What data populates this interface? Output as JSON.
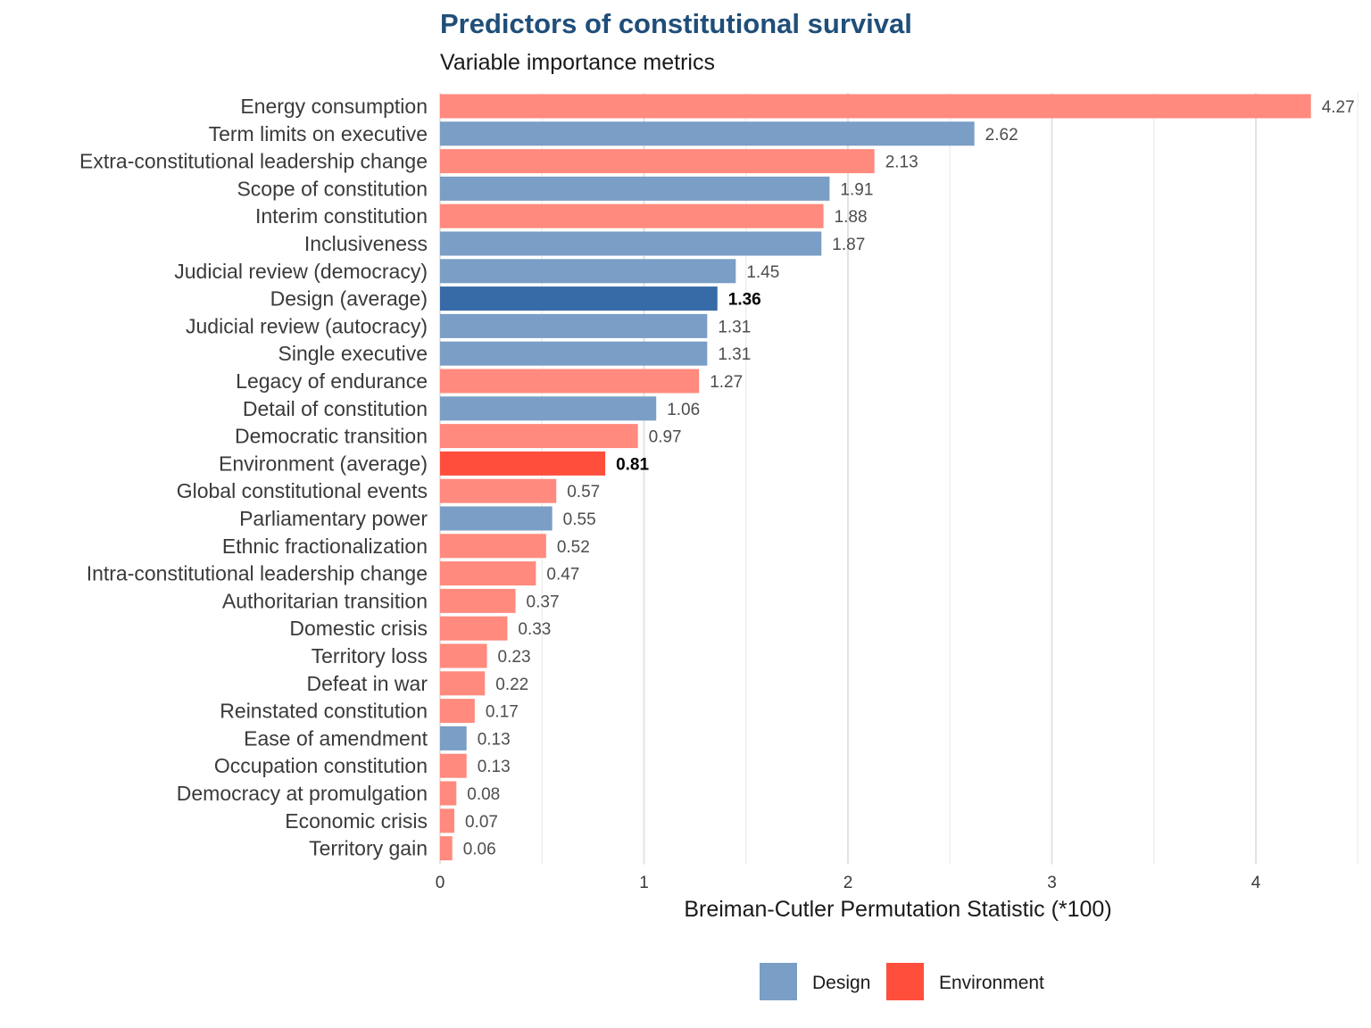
{
  "chart_data": {
    "type": "bar",
    "orientation": "horizontal",
    "title": "Predictors of constitutional survival",
    "subtitle": "Variable importance metrics",
    "xlabel": "Breiman-Cutler Permutation Statistic (*100)",
    "ylabel": "",
    "xlim": [
      0,
      4.5
    ],
    "xticks": [
      0,
      1,
      2,
      3,
      4
    ],
    "grid": true,
    "legend_position": "bottom",
    "colors": {
      "Design": "#7a9ec5",
      "Environment": "#ff8a7d",
      "Design_average": "#376ba7",
      "Environment_average": "#ff4f3c",
      "title": "#1f4e79"
    },
    "legend": [
      {
        "label": "Design",
        "color": "#7a9ec5"
      },
      {
        "label": "Environment",
        "color": "#ff4f3c"
      }
    ],
    "bars": [
      {
        "label": "Energy consumption",
        "value": 4.27,
        "value_label": "4.27",
        "group": "Environment",
        "average": false
      },
      {
        "label": "Term limits on executive",
        "value": 2.62,
        "value_label": "2.62",
        "group": "Design",
        "average": false
      },
      {
        "label": "Extra-constitutional leadership change",
        "value": 2.13,
        "value_label": "2.13",
        "group": "Environment",
        "average": false
      },
      {
        "label": "Scope of constitution",
        "value": 1.91,
        "value_label": "1.91",
        "group": "Design",
        "average": false
      },
      {
        "label": "Interim constitution",
        "value": 1.88,
        "value_label": "1.88",
        "group": "Environment",
        "average": false
      },
      {
        "label": "Inclusiveness",
        "value": 1.87,
        "value_label": "1.87",
        "group": "Design",
        "average": false
      },
      {
        "label": "Judicial review (democracy)",
        "value": 1.45,
        "value_label": "1.45",
        "group": "Design",
        "average": false
      },
      {
        "label": "Design (average)",
        "value": 1.36,
        "value_label": "1.36",
        "group": "Design",
        "average": true
      },
      {
        "label": "Judicial review (autocracy)",
        "value": 1.31,
        "value_label": "1.31",
        "group": "Design",
        "average": false
      },
      {
        "label": "Single executive",
        "value": 1.31,
        "value_label": "1.31",
        "group": "Design",
        "average": false
      },
      {
        "label": "Legacy of endurance",
        "value": 1.27,
        "value_label": "1.27",
        "group": "Environment",
        "average": false
      },
      {
        "label": "Detail of constitution",
        "value": 1.06,
        "value_label": "1.06",
        "group": "Design",
        "average": false
      },
      {
        "label": "Democratic transition",
        "value": 0.97,
        "value_label": "0.97",
        "group": "Environment",
        "average": false
      },
      {
        "label": "Environment (average)",
        "value": 0.81,
        "value_label": "0.81",
        "group": "Environment",
        "average": true
      },
      {
        "label": "Global constitutional events",
        "value": 0.57,
        "value_label": "0.57",
        "group": "Environment",
        "average": false
      },
      {
        "label": "Parliamentary power",
        "value": 0.55,
        "value_label": "0.55",
        "group": "Design",
        "average": false
      },
      {
        "label": "Ethnic fractionalization",
        "value": 0.52,
        "value_label": "0.52",
        "group": "Environment",
        "average": false
      },
      {
        "label": "Intra-constitutional leadership change",
        "value": 0.47,
        "value_label": "0.47",
        "group": "Environment",
        "average": false
      },
      {
        "label": "Authoritarian transition",
        "value": 0.37,
        "value_label": "0.37",
        "group": "Environment",
        "average": false
      },
      {
        "label": "Domestic crisis",
        "value": 0.33,
        "value_label": "0.33",
        "group": "Environment",
        "average": false
      },
      {
        "label": "Territory loss",
        "value": 0.23,
        "value_label": "0.23",
        "group": "Environment",
        "average": false
      },
      {
        "label": "Defeat in war",
        "value": 0.22,
        "value_label": "0.22",
        "group": "Environment",
        "average": false
      },
      {
        "label": "Reinstated constitution",
        "value": 0.17,
        "value_label": "0.17",
        "group": "Environment",
        "average": false
      },
      {
        "label": "Ease of amendment",
        "value": 0.13,
        "value_label": "0.13",
        "group": "Design",
        "average": false
      },
      {
        "label": "Occupation constitution",
        "value": 0.13,
        "value_label": "0.13",
        "group": "Environment",
        "average": false
      },
      {
        "label": "Democracy at promulgation",
        "value": 0.08,
        "value_label": "0.08",
        "group": "Environment",
        "average": false
      },
      {
        "label": "Economic crisis",
        "value": 0.07,
        "value_label": "0.07",
        "group": "Environment",
        "average": false
      },
      {
        "label": "Territory gain",
        "value": 0.06,
        "value_label": "0.06",
        "group": "Environment",
        "average": false
      }
    ]
  }
}
